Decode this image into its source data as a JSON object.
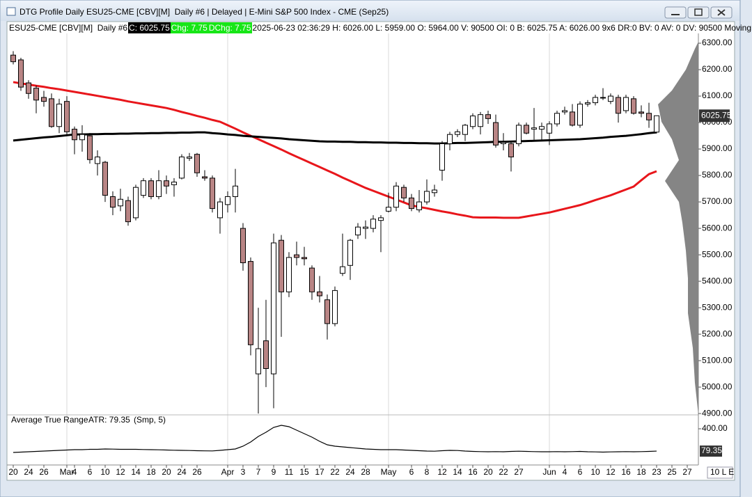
{
  "window": {
    "title": "DTG Profile Daily ESU25-CME [CBV][M]  Daily #6 | Delayed | E-Mini S&P 500 Index - CME (Sep25)",
    "status": "10 L E"
  },
  "info_bar": {
    "symbol": "ESU25-CME [CBV][M]  Daily #6",
    "close": "C: 6025.75",
    "change": "Chg: 7.75",
    "day_change": "DChg: 7.75",
    "details": "2025-06-23 02:36:29 H: 6026.00 L: 5959.00 O: 5964.00 V: 90500 OI: 0 B: 6025.75 A: 6026.00 9x6 DR:0 BV: 0 AV: 0 DV: 90500 Moving"
  },
  "chart_data": [
    {
      "type": "candlestick",
      "categories": [
        "20",
        null,
        "24",
        null,
        "26",
        null,
        null,
        "Mar",
        "4",
        null,
        "6",
        null,
        "10",
        null,
        "12",
        null,
        "14",
        null,
        "18",
        null,
        "20",
        null,
        "24",
        null,
        "26",
        null,
        null,
        null,
        "Apr",
        null,
        "3",
        null,
        "7",
        null,
        "9",
        null,
        "11",
        null,
        "15",
        null,
        "17",
        null,
        "22",
        null,
        "24",
        null,
        "28",
        null,
        null,
        "May",
        null,
        null,
        "6",
        null,
        "8",
        null,
        "12",
        null,
        "14",
        null,
        "16",
        null,
        "20",
        null,
        "22",
        null,
        "27",
        null,
        null,
        null,
        "Jun",
        null,
        "4",
        null,
        "6",
        null,
        "10",
        null,
        "12",
        null,
        "16",
        null,
        "18",
        null,
        "23",
        null,
        "25",
        null,
        "27"
      ],
      "open": [
        6255,
        6237,
        6150,
        6130,
        6095,
        6090,
        5985,
        6080,
        5975,
        5935,
        5950,
        5845,
        5850,
        5720,
        5685,
        5705,
        5640,
        5725,
        5780,
        5720,
        5780,
        5765,
        5790,
        5865,
        5880,
        5795,
        5790,
        5640,
        5690,
        5720,
        5600,
        5475,
        5050,
        5175,
        5050,
        5555,
        5360,
        5500,
        5490,
        5450,
        5360,
        5330,
        5240,
        5430,
        5460,
        5575,
        5600,
        5600,
        5630,
        5665,
        5680,
        5755,
        5715,
        5670,
        5700,
        5735,
        5820,
        5920,
        5955,
        5955,
        5985,
        5985,
        6030,
        6000,
        5920,
        5920,
        5920,
        5990,
        5975,
        5975,
        5960,
        5995,
        6040,
        6040,
        5990,
        6070,
        6075,
        6095,
        6080,
        6095,
        6045,
        6090,
        6040,
        6035,
        5964,
        null,
        null,
        null,
        null
      ],
      "high": [
        6270,
        6245,
        6160,
        6140,
        6120,
        6110,
        6090,
        6100,
        5985,
        5990,
        5960,
        5895,
        5855,
        5740,
        5750,
        5720,
        5765,
        5790,
        5790,
        5820,
        5800,
        5790,
        5880,
        5885,
        5885,
        5820,
        5800,
        5715,
        5740,
        5825,
        5620,
        5490,
        5300,
        5330,
        5580,
        5575,
        5510,
        5550,
        5530,
        5460,
        5420,
        5350,
        5380,
        5580,
        5560,
        5620,
        5630,
        5650,
        5650,
        5735,
        5775,
        5765,
        5730,
        5745,
        5785,
        5765,
        5930,
        5965,
        5975,
        5995,
        6035,
        6040,
        6045,
        6030,
        5960,
        5930,
        6000,
        6000,
        6055,
        6000,
        6005,
        6045,
        6060,
        6070,
        6080,
        6085,
        6105,
        6130,
        6110,
        6105,
        6105,
        6100,
        6065,
        6075,
        6026,
        null,
        null,
        null,
        null
      ],
      "low": [
        6220,
        6120,
        6090,
        6035,
        6060,
        5980,
        5960,
        5950,
        5880,
        5890,
        5845,
        5800,
        5700,
        5650,
        5665,
        5610,
        5630,
        5715,
        5710,
        5710,
        5730,
        5720,
        5785,
        5855,
        5795,
        5780,
        5660,
        5580,
        5660,
        5660,
        5440,
        5120,
        4900,
        5000,
        4920,
        5190,
        5340,
        5460,
        5460,
        5330,
        5320,
        5180,
        5230,
        5420,
        5405,
        5560,
        5560,
        5585,
        5510,
        5660,
        5665,
        5700,
        5665,
        5660,
        5690,
        5720,
        5780,
        5895,
        5945,
        5930,
        5975,
        5955,
        5995,
        5905,
        5895,
        5815,
        5910,
        5955,
        5935,
        5930,
        5915,
        5985,
        6030,
        5985,
        5980,
        6060,
        6065,
        6085,
        6070,
        6000,
        6035,
        6030,
        6020,
        5980,
        5959,
        null,
        null,
        null,
        null
      ],
      "close": [
        6230,
        6134,
        6110,
        6085,
        6080,
        5985,
        6070,
        5965,
        5935,
        5955,
        5860,
        5870,
        5725,
        5680,
        5710,
        5625,
        5755,
        5780,
        5720,
        5780,
        5760,
        5775,
        5870,
        5870,
        5810,
        5790,
        5675,
        5700,
        5720,
        5760,
        5470,
        5160,
        5145,
        5070,
        5545,
        5360,
        5490,
        5490,
        5485,
        5360,
        5345,
        5240,
        5365,
        5455,
        5555,
        5605,
        5605,
        5635,
        5640,
        5680,
        5760,
        5715,
        5675,
        5700,
        5740,
        5745,
        5920,
        5955,
        5965,
        5990,
        6025,
        6030,
        6015,
        5915,
        5925,
        5870,
        5990,
        5960,
        5980,
        5985,
        5995,
        6035,
        6045,
        5990,
        6070,
        6075,
        6095,
        6095,
        6100,
        6035,
        6095,
        6035,
        6035,
        6010,
        6025.75,
        null,
        null,
        null,
        null
      ],
      "up_color": "#ffffff",
      "down_color": "#b98585",
      "overlays": [
        {
          "color": "#e8161b",
          "values": [
            6153,
            6148,
            6144,
            6139,
            6135,
            6130,
            6126,
            6121,
            6116,
            6111,
            6106,
            6101,
            6096,
            6091,
            6086,
            6080,
            6075,
            6070,
            6065,
            6060,
            6055,
            6048,
            6040,
            6033,
            6025,
            6018,
            6010,
            6003,
            5990,
            5977,
            5963,
            5950,
            5937,
            5924,
            5911,
            5898,
            5884,
            5871,
            5858,
            5845,
            5832,
            5819,
            5806,
            5792,
            5779,
            5766,
            5753,
            5742,
            5731,
            5720,
            5709,
            5698,
            5687,
            5681,
            5676,
            5670,
            5664,
            5659,
            5653,
            5648,
            5642,
            5641,
            5641,
            5641,
            5640,
            5640,
            5640,
            5645,
            5650,
            5655,
            5660,
            5667,
            5674,
            5681,
            5688,
            5697,
            5707,
            5716,
            5725,
            5736,
            5747,
            5758,
            5782,
            5805,
            5816,
            null,
            null,
            null,
            null
          ]
        },
        {
          "color": "#000000",
          "values": [
            5932,
            5935,
            5938,
            5941,
            5944,
            5946,
            5949,
            5952,
            5955,
            5955,
            5956,
            5956,
            5957,
            5957,
            5958,
            5958,
            5959,
            5959,
            5960,
            5960,
            5961,
            5961,
            5962,
            5962,
            5963,
            5963,
            5960,
            5958,
            5955,
            5953,
            5950,
            5948,
            5946,
            5944,
            5942,
            5940,
            5937,
            5935,
            5933,
            5931,
            5929,
            5928,
            5928,
            5927,
            5927,
            5926,
            5926,
            5925,
            5925,
            5924,
            5924,
            5923,
            5923,
            5922,
            5922,
            5921,
            5921,
            5922,
            5923,
            5923,
            5924,
            5925,
            5926,
            5927,
            5927,
            5928,
            5929,
            5930,
            5931,
            5932,
            5933,
            5934,
            5935,
            5936,
            5937,
            5939,
            5941,
            5943,
            5946,
            5948,
            5950,
            5953,
            5956,
            5960,
            5963,
            null,
            null,
            null,
            null
          ]
        }
      ],
      "ylim": [
        4895,
        6337
      ],
      "yticks": [
        {
          "value": 6300,
          "label": "6300.00"
        },
        {
          "value": 6200,
          "label": "6200.00"
        },
        {
          "value": 6100,
          "label": "6100.00"
        },
        {
          "value": 6000,
          "label": "6000.00"
        },
        {
          "value": 5900,
          "label": "5900.00"
        },
        {
          "value": 5800,
          "label": "5800.00"
        },
        {
          "value": 5700,
          "label": "5700.00"
        },
        {
          "value": 5600,
          "label": "5600.00"
        },
        {
          "value": 5500,
          "label": "5500.00"
        },
        {
          "value": 5400,
          "label": "5400.00"
        },
        {
          "value": 5300,
          "label": "5300.00"
        },
        {
          "value": 5200,
          "label": "5200.00"
        },
        {
          "value": 5100,
          "label": "5100.00"
        },
        {
          "value": 5000,
          "label": "5000.00"
        },
        {
          "value": 4900,
          "label": "4900.00"
        }
      ]
    },
    {
      "type": "line",
      "title": "Average True Range",
      "subtitle": "ATR: 79.35",
      "annotation": "(Smp, 5)",
      "color": "#000000",
      "values": [
        60,
        65,
        70,
        75,
        80,
        85,
        90,
        95,
        100,
        100,
        105,
        105,
        110,
        108,
        105,
        105,
        105,
        102,
        100,
        98,
        95,
        92,
        90,
        88,
        85,
        83,
        82,
        90,
        100,
        110,
        150,
        210,
        290,
        350,
        420,
        450,
        430,
        380,
        330,
        280,
        220,
        170,
        150,
        140,
        130,
        120,
        110,
        105,
        100,
        100,
        100,
        95,
        90,
        85,
        80,
        78,
        85,
        90,
        88,
        80,
        75,
        72,
        70,
        72,
        70,
        75,
        78,
        75,
        72,
        70,
        70,
        72,
        70,
        72,
        75,
        70,
        68,
        65,
        68,
        70,
        72,
        70,
        72,
        75,
        79.35,
        null,
        null,
        null,
        null
      ],
      "ylim": [
        0,
        600
      ],
      "yticks": [
        {
          "value": 400,
          "label": "400.00"
        }
      ]
    }
  ]
}
